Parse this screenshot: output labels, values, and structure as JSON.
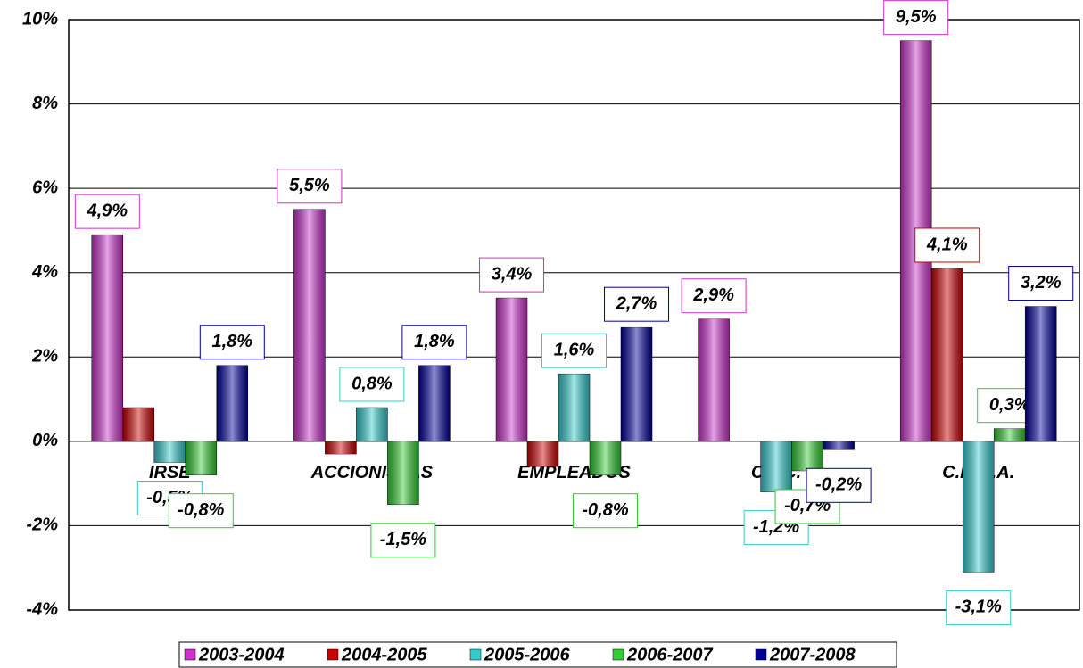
{
  "chart_data": {
    "type": "bar",
    "categories": [
      "IRSE",
      "ACCIONISTAS",
      "EMPLEADOS",
      "C.P.C.",
      "C.E.M.A."
    ],
    "series": [
      {
        "name": "2003-2004",
        "color": "#cc33cc",
        "values": [
          4.9,
          5.5,
          3.4,
          2.9,
          9.5
        ],
        "value_labels": [
          "4,9%",
          "5,5%",
          "3,4%",
          "2,9%",
          "9,5%"
        ]
      },
      {
        "name": "2004-2005",
        "color": "#cc0000",
        "values": [
          0.8,
          -0.3,
          -0.6,
          null,
          4.1
        ],
        "value_labels": [
          null,
          null,
          null,
          null,
          "4,1%"
        ]
      },
      {
        "name": "2005-2006",
        "color": "#33cccc",
        "values": [
          -0.5,
          0.8,
          1.6,
          -1.2,
          -3.1
        ],
        "value_labels": [
          "-0,5%",
          "0,8%",
          "1,6%",
          "-1,2%",
          "-3,1%"
        ]
      },
      {
        "name": "2006-2007",
        "color": "#33cc33",
        "values": [
          -0.8,
          -1.5,
          -0.8,
          -0.7,
          0.3
        ],
        "value_labels": [
          "-0,8%",
          "-1,5%",
          "-0,8%",
          "-0,7%",
          "0,3%"
        ]
      },
      {
        "name": "2007-2008",
        "color": "#000099",
        "values": [
          1.8,
          1.8,
          2.7,
          -0.2,
          3.2
        ],
        "value_labels": [
          "1,8%",
          "1,8%",
          "2,7%",
          "-0,2%",
          "3,2%"
        ]
      }
    ],
    "ylim": [
      -4,
      10
    ],
    "yticks": [
      {
        "value": -4,
        "label": "-4%"
      },
      {
        "value": -2,
        "label": "-2%"
      },
      {
        "value": 0,
        "label": "0%"
      },
      {
        "value": 2,
        "label": "2%"
      },
      {
        "value": 4,
        "label": "4%"
      },
      {
        "value": 6,
        "label": "6%"
      },
      {
        "value": 8,
        "label": "8%"
      },
      {
        "value": 10,
        "label": "10%"
      }
    ],
    "grid": true
  }
}
